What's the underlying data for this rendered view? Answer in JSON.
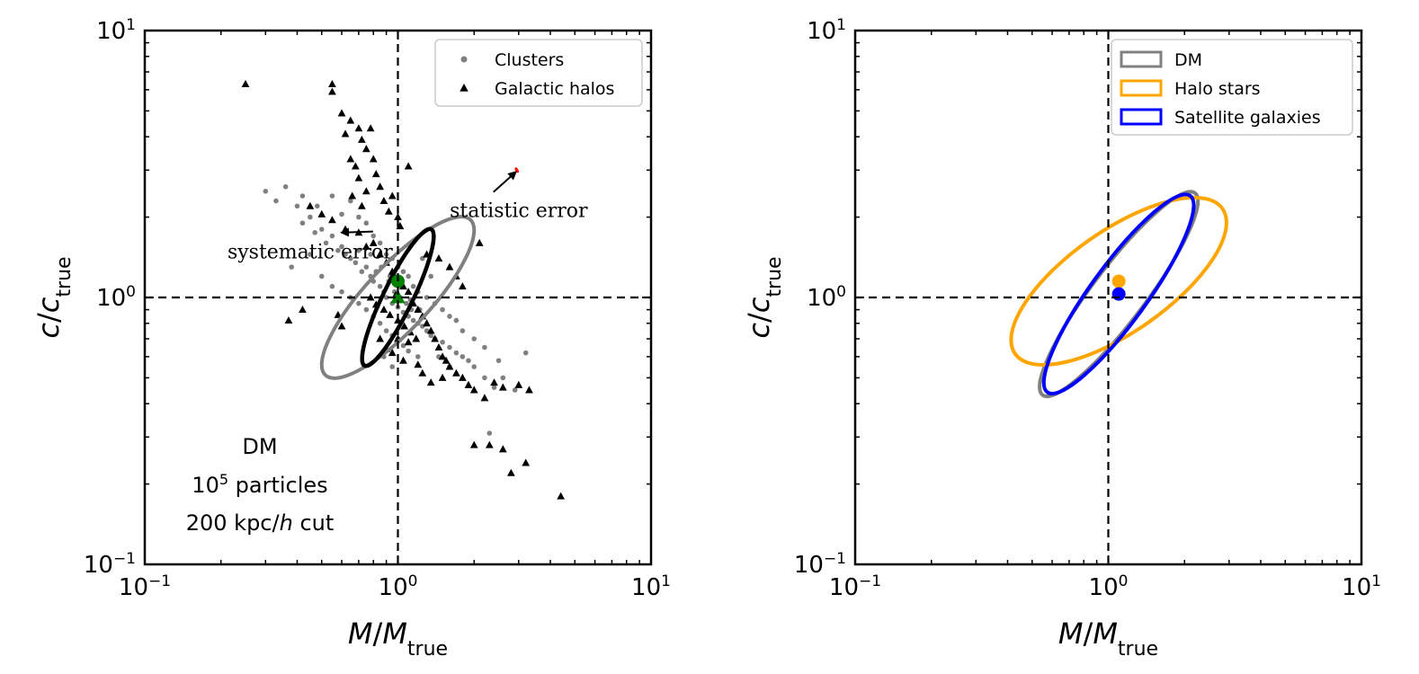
{
  "chart_data": [
    {
      "type": "scatter",
      "xlabel": "M/M_true",
      "ylabel": "c/c_true",
      "xscale": "log",
      "yscale": "log",
      "xlim": [
        0.1,
        10
      ],
      "ylim": [
        0.1,
        10
      ],
      "x_ticks": [
        {
          "value": 0.1,
          "base": "10",
          "exp": "−1"
        },
        {
          "value": 1,
          "base": "10",
          "exp": "0"
        },
        {
          "value": 10,
          "base": "10",
          "exp": "1"
        }
      ],
      "y_ticks": [
        {
          "value": 0.1,
          "base": "10",
          "exp": "−1"
        },
        {
          "value": 1,
          "base": "10",
          "exp": "0"
        },
        {
          "value": 10,
          "base": "10",
          "exp": "1"
        }
      ],
      "reference_lines": {
        "x": 1,
        "y": 1,
        "style": "dashed"
      },
      "legend": {
        "position": "top-right",
        "entries": [
          {
            "label": "Clusters",
            "marker": "circle",
            "color": "#808080"
          },
          {
            "label": "Galactic halos",
            "marker": "triangle",
            "color": "#000000"
          }
        ]
      },
      "series": [
        {
          "name": "Clusters",
          "marker": "circle",
          "color": "#808080",
          "points": [
            [
              0.3,
              2.5
            ],
            [
              0.33,
              2.3
            ],
            [
              0.36,
              2.6
            ],
            [
              0.4,
              2.2
            ],
            [
              0.42,
              1.9
            ],
            [
              0.45,
              2.0
            ],
            [
              0.47,
              1.75
            ],
            [
              0.5,
              1.8
            ],
            [
              0.52,
              1.6
            ],
            [
              0.55,
              1.7
            ],
            [
              0.58,
              1.5
            ],
            [
              0.6,
              1.55
            ],
            [
              0.62,
              1.45
            ],
            [
              0.65,
              1.4
            ],
            [
              0.68,
              1.35
            ],
            [
              0.7,
              1.5
            ],
            [
              0.72,
              1.25
            ],
            [
              0.75,
              1.3
            ],
            [
              0.78,
              1.2
            ],
            [
              0.8,
              1.15
            ],
            [
              0.82,
              1.25
            ],
            [
              0.85,
              1.1
            ],
            [
              0.88,
              1.05
            ],
            [
              0.9,
              1.0
            ],
            [
              0.92,
              1.15
            ],
            [
              0.95,
              0.95
            ],
            [
              0.97,
              1.05
            ],
            [
              1.0,
              0.92
            ],
            [
              1.02,
              1.0
            ],
            [
              1.05,
              0.88
            ],
            [
              1.08,
              0.95
            ],
            [
              1.1,
              0.85
            ],
            [
              1.13,
              0.9
            ],
            [
              1.15,
              0.82
            ],
            [
              1.2,
              0.8
            ],
            [
              1.25,
              0.78
            ],
            [
              1.3,
              0.75
            ],
            [
              1.35,
              0.72
            ],
            [
              1.4,
              0.7
            ],
            [
              1.5,
              0.68
            ],
            [
              1.6,
              0.65
            ],
            [
              1.7,
              0.62
            ],
            [
              1.8,
              0.6
            ],
            [
              1.9,
              0.58
            ],
            [
              2.0,
              0.55
            ],
            [
              2.2,
              0.5
            ],
            [
              2.4,
              0.46
            ],
            [
              2.6,
              0.5
            ],
            [
              2.9,
              0.45
            ],
            [
              3.2,
              0.62
            ],
            [
              2.3,
              0.31
            ],
            [
              0.38,
              1.3
            ],
            [
              0.45,
              1.45
            ],
            [
              0.55,
              2.4
            ],
            [
              0.6,
              2.05
            ],
            [
              0.65,
              2.3
            ],
            [
              0.7,
              2.0
            ],
            [
              0.75,
              1.9
            ],
            [
              0.8,
              1.7
            ],
            [
              0.85,
              1.6
            ],
            [
              0.9,
              1.45
            ],
            [
              0.95,
              1.4
            ],
            [
              1.0,
              1.3
            ],
            [
              1.05,
              1.25
            ],
            [
              1.1,
              1.2
            ],
            [
              1.15,
              1.1
            ],
            [
              1.2,
              1.05
            ],
            [
              1.3,
              1.0
            ],
            [
              1.4,
              0.95
            ],
            [
              1.5,
              0.9
            ],
            [
              1.6,
              0.85
            ],
            [
              1.7,
              0.82
            ],
            [
              0.65,
              1.0
            ],
            [
              0.7,
              0.95
            ],
            [
              0.75,
              0.9
            ],
            [
              0.8,
              0.85
            ],
            [
              0.85,
              0.8
            ],
            [
              0.9,
              0.75
            ],
            [
              0.95,
              0.72
            ],
            [
              1.0,
              0.7
            ],
            [
              1.05,
              0.66
            ],
            [
              1.1,
              0.63
            ],
            [
              1.2,
              0.6
            ],
            [
              0.5,
              1.2
            ],
            [
              0.55,
              1.1
            ],
            [
              0.6,
              1.05
            ],
            [
              1.8,
              0.75
            ],
            [
              2.0,
              0.7
            ],
            [
              2.2,
              0.65
            ],
            [
              2.5,
              0.58
            ],
            [
              0.42,
              2.4
            ],
            [
              0.48,
              2.2
            ],
            [
              1.25,
              1.4
            ],
            [
              1.35,
              1.2
            ],
            [
              0.88,
              0.6
            ],
            [
              0.95,
              0.55
            ],
            [
              1.6,
              0.55
            ],
            [
              1.45,
              0.6
            ],
            [
              0.78,
              1.45
            ],
            [
              0.86,
              1.3
            ],
            [
              0.93,
              1.2
            ],
            [
              1.03,
              1.1
            ],
            [
              1.12,
              0.98
            ],
            [
              1.22,
              0.9
            ]
          ]
        },
        {
          "name": "Galactic halos",
          "marker": "triangle",
          "color": "#000000",
          "points": [
            [
              0.25,
              6.3
            ],
            [
              0.55,
              6.3
            ],
            [
              0.55,
              5.9
            ],
            [
              0.6,
              4.9
            ],
            [
              0.62,
              4.1
            ],
            [
              0.65,
              4.6
            ],
            [
              0.7,
              4.3
            ],
            [
              0.72,
              3.9
            ],
            [
              0.75,
              3.6
            ],
            [
              0.78,
              4.3
            ],
            [
              0.65,
              3.3
            ],
            [
              0.68,
              3.1
            ],
            [
              0.7,
              2.8
            ],
            [
              0.8,
              3.3
            ],
            [
              0.82,
              2.9
            ],
            [
              0.85,
              2.6
            ],
            [
              0.66,
              2.4
            ],
            [
              0.72,
              2.2
            ],
            [
              0.75,
              2.5
            ],
            [
              0.88,
              2.3
            ],
            [
              0.92,
              2.1
            ],
            [
              0.95,
              2.4
            ],
            [
              1.0,
              2.0
            ],
            [
              1.02,
              1.85
            ],
            [
              0.45,
              2.2
            ],
            [
              0.5,
              2.05
            ],
            [
              0.55,
              1.95
            ],
            [
              0.62,
              1.8
            ],
            [
              0.7,
              1.75
            ],
            [
              0.75,
              1.55
            ],
            [
              0.8,
              1.6
            ],
            [
              0.85,
              1.45
            ],
            [
              0.9,
              1.35
            ],
            [
              0.95,
              1.25
            ],
            [
              1.0,
              1.15
            ],
            [
              1.05,
              1.1
            ],
            [
              1.1,
              1.05
            ],
            [
              1.15,
              0.95
            ],
            [
              1.2,
              0.9
            ],
            [
              1.25,
              0.85
            ],
            [
              1.3,
              0.8
            ],
            [
              1.35,
              0.75
            ],
            [
              1.4,
              0.7
            ],
            [
              1.45,
              0.65
            ],
            [
              1.5,
              0.6
            ],
            [
              1.55,
              0.58
            ],
            [
              1.6,
              0.55
            ],
            [
              1.7,
              0.52
            ],
            [
              1.8,
              0.5
            ],
            [
              1.9,
              0.47
            ],
            [
              2.0,
              0.45
            ],
            [
              2.2,
              0.42
            ],
            [
              1.1,
              3.1
            ],
            [
              1.3,
              1.45
            ],
            [
              1.45,
              1.4
            ],
            [
              1.6,
              1.3
            ],
            [
              1.7,
              1.2
            ],
            [
              1.8,
              1.1
            ],
            [
              2.1,
              1.6
            ],
            [
              0.37,
              0.82
            ],
            [
              0.42,
              0.9
            ],
            [
              0.58,
              0.86
            ],
            [
              0.6,
              0.78
            ],
            [
              0.95,
              0.62
            ],
            [
              1.05,
              0.58
            ],
            [
              1.2,
              0.56
            ],
            [
              1.0,
              0.7
            ],
            [
              1.1,
              0.68
            ],
            [
              0.85,
              0.7
            ],
            [
              0.9,
              0.64
            ],
            [
              1.25,
              0.52
            ],
            [
              1.35,
              0.48
            ],
            [
              1.5,
              0.5
            ],
            [
              2.4,
              0.48
            ],
            [
              2.6,
              0.46
            ],
            [
              3.0,
              0.47
            ],
            [
              3.3,
              0.45
            ],
            [
              2.0,
              0.28
            ],
            [
              2.3,
              0.28
            ],
            [
              2.6,
              0.27
            ],
            [
              2.8,
              0.22
            ],
            [
              3.2,
              0.24
            ],
            [
              4.4,
              0.18
            ],
            [
              0.78,
              1.0
            ],
            [
              0.82,
              0.94
            ],
            [
              0.88,
              0.9
            ],
            [
              0.93,
              0.86
            ],
            [
              1.0,
              0.82
            ],
            [
              1.06,
              0.78
            ],
            [
              1.12,
              0.74
            ],
            [
              1.18,
              0.7
            ],
            [
              0.98,
              1.02
            ]
          ]
        }
      ],
      "ellipses": [
        {
          "name": "Clusters spread",
          "color": "#808080",
          "center": [
            1.0,
            1.0
          ],
          "semi_major_dex": 0.42,
          "semi_minor_dex": 0.12,
          "angle_deg": -47
        },
        {
          "name": "Galactic halos spread",
          "color": "#000000",
          "center": [
            1.0,
            1.0
          ],
          "semi_major_dex": 0.3,
          "semi_minor_dex": 0.055,
          "angle_deg": -64
        },
        {
          "name": "statistic error",
          "color": "#ff0000",
          "center": [
            2.95,
            3.0
          ],
          "semi_major_dex": 0.009,
          "semi_minor_dex": 0.003,
          "angle_deg": 60
        }
      ],
      "mean_markers": [
        {
          "marker": "circle",
          "color": "#008000",
          "x": 1.0,
          "y": 1.15
        },
        {
          "marker": "triangle",
          "color": "#008000",
          "x": 1.0,
          "y": 1.0
        }
      ],
      "annotations": [
        {
          "text": "systematic error",
          "text_at": [
            0.45,
            1.4
          ],
          "arrow_to": [
            0.6,
            1.75
          ]
        },
        {
          "text": "statistic error",
          "text_at": [
            3.0,
            2.0
          ],
          "arrow_to": [
            2.92,
            2.95
          ]
        }
      ],
      "note_lines": [
        {
          "text": "DM"
        },
        {
          "base": "10",
          "exp": "5",
          "text": " particles"
        },
        {
          "text": "200 kpc/",
          "italic": "h",
          "suffix": " cut"
        }
      ]
    },
    {
      "type": "scatter",
      "xlabel": "M/M_true",
      "ylabel": "c/c_true",
      "xscale": "log",
      "yscale": "log",
      "xlim": [
        0.1,
        10
      ],
      "ylim": [
        0.1,
        10
      ],
      "x_ticks": [
        {
          "value": 0.1,
          "base": "10",
          "exp": "−1"
        },
        {
          "value": 1,
          "base": "10",
          "exp": "0"
        },
        {
          "value": 10,
          "base": "10",
          "exp": "1"
        }
      ],
      "y_ticks": [
        {
          "value": 0.1,
          "base": "10",
          "exp": "−1"
        },
        {
          "value": 1,
          "base": "10",
          "exp": "0"
        },
        {
          "value": 10,
          "base": "10",
          "exp": "1"
        }
      ],
      "reference_lines": {
        "x": 1,
        "y": 1,
        "style": "dashed"
      },
      "legend": {
        "position": "top-right",
        "entries": [
          {
            "label": "DM",
            "marker": "rect",
            "color": "#808080"
          },
          {
            "label": "Halo stars",
            "marker": "rect",
            "color": "#ffa500"
          },
          {
            "label": "Satellite galaxies",
            "marker": "rect",
            "color": "#0000ff"
          }
        ]
      },
      "ellipses": [
        {
          "name": "DM",
          "color": "#808080",
          "center": [
            1.1,
            1.03
          ],
          "semi_major_dex": 0.5,
          "semi_minor_dex": 0.1,
          "angle_deg": -53
        },
        {
          "name": "Halo stars",
          "color": "#ffa500",
          "center": [
            1.1,
            1.15
          ],
          "semi_major_dex": 0.5,
          "semi_minor_dex": 0.19,
          "angle_deg": -35
        },
        {
          "name": "Satellite galaxies",
          "color": "#0000ff",
          "center": [
            1.1,
            1.03
          ],
          "semi_major_dex": 0.48,
          "semi_minor_dex": 0.105,
          "angle_deg": -54
        }
      ],
      "mean_markers": [
        {
          "marker": "circle",
          "color": "#ffa500",
          "x": 1.1,
          "y": 1.15
        },
        {
          "marker": "circle",
          "color": "#0000ff",
          "x": 1.1,
          "y": 1.03
        }
      ]
    }
  ]
}
